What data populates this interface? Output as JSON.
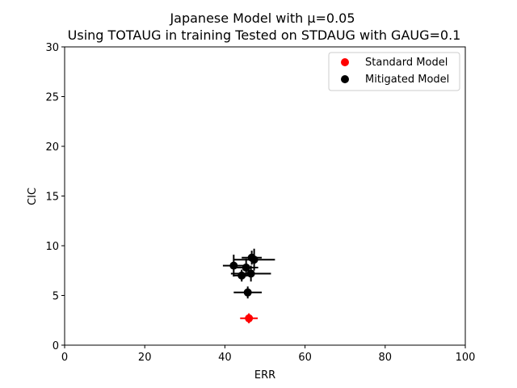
{
  "chart_data": {
    "type": "scatter",
    "title_line1": "Japanese Model with μ=0.05",
    "title_line2": "Using TOTAUG in training Tested on STDAUG with GAUG=0.1",
    "xlabel": "ERR",
    "ylabel": "CIC",
    "xlim": [
      0,
      100
    ],
    "ylim": [
      0,
      30
    ],
    "xticks": [
      0,
      20,
      40,
      60,
      80,
      100
    ],
    "yticks": [
      0,
      5,
      10,
      15,
      20,
      25,
      30
    ],
    "grid": false,
    "legend_position": "top-right",
    "series": [
      {
        "name": "Standard Model",
        "color": "#ff0000",
        "points": [
          {
            "x": 46.0,
            "y": 2.7,
            "xerr": 2.2,
            "yerr": 0.5
          }
        ]
      },
      {
        "name": "Mitigated Model",
        "color": "#000000",
        "points": [
          {
            "x": 42.2,
            "y": 8.0,
            "xerr": 2.7,
            "yerr": 1.1
          },
          {
            "x": 44.2,
            "y": 7.0,
            "xerr": 2.2,
            "yerr": 0.6
          },
          {
            "x": 45.3,
            "y": 7.8,
            "xerr": 3.0,
            "yerr": 0.9
          },
          {
            "x": 45.7,
            "y": 5.3,
            "xerr": 3.5,
            "yerr": 0.6
          },
          {
            "x": 46.5,
            "y": 7.2,
            "xerr": 5.0,
            "yerr": 0.8
          },
          {
            "x": 46.7,
            "y": 8.8,
            "xerr": 2.5,
            "yerr": 0.7
          },
          {
            "x": 47.3,
            "y": 8.6,
            "xerr": 5.2,
            "yerr": 1.1
          }
        ]
      }
    ]
  }
}
